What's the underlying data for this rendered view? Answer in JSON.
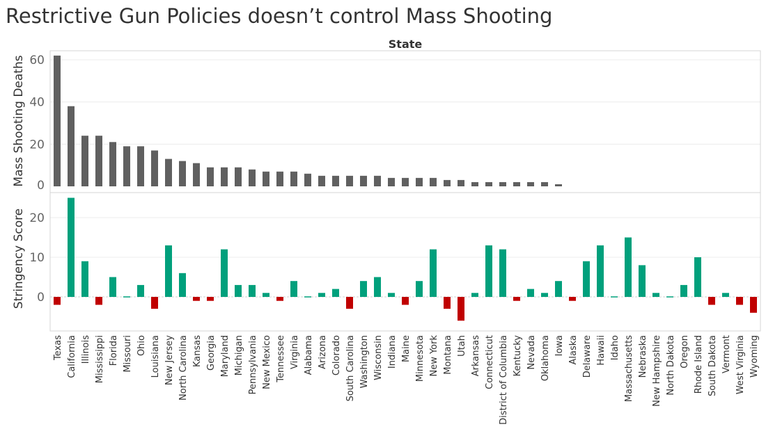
{
  "title": "Restrictive Gun Policies doesn’t control Mass Shooting",
  "colors": {
    "deaths_bar": "#606060",
    "positive_score": "#00a07c",
    "negative_score": "#c00000",
    "axis_text": "#666666",
    "label_text": "#333333"
  },
  "chart_data": [
    {
      "type": "bar",
      "title": "",
      "column_header": "State",
      "xlabel": "",
      "ylabel": "Mass Shooting Deaths",
      "ylim": [
        0,
        63
      ],
      "yticks": [
        0,
        20,
        40,
        60
      ],
      "grid": true,
      "categories": [
        "Texas",
        "California",
        "Illinois",
        "Mississippi",
        "Florida",
        "Missouri",
        "Ohio",
        "Louisiana",
        "New Jersey",
        "North Carolina",
        "Kansas",
        "Georgia",
        "Maryland",
        "Michigan",
        "Pennsylvania",
        "New Mexico",
        "Tennessee",
        "Virginia",
        "Alabama",
        "Arizona",
        "Colorado",
        "South Carolina",
        "Washington",
        "Wisconsin",
        "Indiana",
        "Maine",
        "Minnesota",
        "New York",
        "Montana",
        "Utah",
        "Arkansas",
        "Connecticut",
        "District of Columbia",
        "Kentucky",
        "Nevada",
        "Oklahoma",
        "Iowa",
        "Alaska",
        "Delaware",
        "Hawaii",
        "Idaho",
        "Massachusetts",
        "Nebraska",
        "New Hampshire",
        "North Dakota",
        "Oregon",
        "Rhode Island",
        "South Dakota",
        "Vermont",
        "West Virginia",
        "Wyoming"
      ],
      "series": [
        {
          "values": [
            62,
            38,
            24,
            24,
            21,
            19,
            19,
            17,
            13,
            12,
            11,
            9,
            9,
            9,
            8,
            7,
            7,
            7,
            6,
            5,
            5,
            5,
            5,
            5,
            4,
            4,
            4,
            4,
            3,
            3,
            2,
            2,
            2,
            2,
            2,
            2,
            1,
            0,
            0,
            0,
            0,
            0,
            0,
            0,
            0,
            0,
            0,
            0,
            0,
            0,
            0
          ]
        }
      ]
    },
    {
      "type": "bar",
      "title": "",
      "xlabel": "",
      "ylabel": "Stringency Score",
      "ylim": [
        -8,
        27
      ],
      "yticks": [
        0,
        10,
        20
      ],
      "grid": true,
      "categories": [
        "Texas",
        "California",
        "Illinois",
        "Mississippi",
        "Florida",
        "Missouri",
        "Ohio",
        "Louisiana",
        "New Jersey",
        "North Carolina",
        "Kansas",
        "Georgia",
        "Maryland",
        "Michigan",
        "Pennsylvania",
        "New Mexico",
        "Tennessee",
        "Virginia",
        "Alabama",
        "Arizona",
        "Colorado",
        "South Carolina",
        "Washington",
        "Wisconsin",
        "Indiana",
        "Maine",
        "Minnesota",
        "New York",
        "Montana",
        "Utah",
        "Arkansas",
        "Connecticut",
        "District of Columbia",
        "Kentucky",
        "Nevada",
        "Oklahoma",
        "Iowa",
        "Alaska",
        "Delaware",
        "Hawaii",
        "Idaho",
        "Massachusetts",
        "Nebraska",
        "New Hampshire",
        "North Dakota",
        "Oregon",
        "Rhode Island",
        "South Dakota",
        "Vermont",
        "West Virginia",
        "Wyoming"
      ],
      "series": [
        {
          "values": [
            -2,
            25,
            9,
            -2,
            5,
            0,
            3,
            -3,
            13,
            6,
            -1,
            -1,
            12,
            3,
            3,
            1,
            -1,
            4,
            0,
            1,
            2,
            -3,
            4,
            5,
            1,
            -2,
            4,
            12,
            -3,
            -6,
            1,
            13,
            12,
            -1,
            2,
            1,
            4,
            -1,
            9,
            13,
            0,
            15,
            8,
            1,
            0,
            3,
            10,
            -2,
            1,
            -2,
            -4
          ]
        }
      ]
    }
  ]
}
